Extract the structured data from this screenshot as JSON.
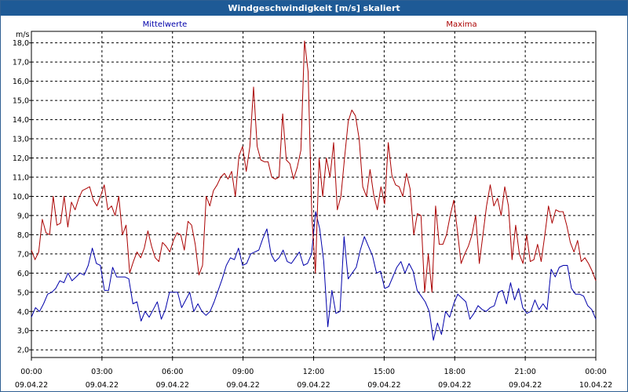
{
  "window": {
    "title": "Windgeschwindigkeit [m/s] skaliert"
  },
  "colors": {
    "title_bg": "#1e5a96",
    "series_mean": "#0000aa",
    "series_max": "#aa0000",
    "grid": "#000000"
  },
  "chart_data": {
    "type": "line",
    "title": "Windgeschwindigkeit [m/s] skaliert",
    "ylabel": "m/s",
    "xlabel": "",
    "ylim": [
      1.6,
      18.6
    ],
    "xlim": [
      0,
      24
    ],
    "grid": true,
    "legend_placement": "top",
    "y_ticks": [
      "2,0",
      "3,0",
      "4,0",
      "5,0",
      "6,0",
      "7,0",
      "8,0",
      "9,0",
      "10,0",
      "11,0",
      "12,0",
      "13,0",
      "14,0",
      "15,0",
      "16,0",
      "17,0",
      "18,0"
    ],
    "x_ticks": [
      {
        "time": "00:00",
        "date": "09.04.22"
      },
      {
        "time": "03:00",
        "date": "09.04.22"
      },
      {
        "time": "06:00",
        "date": "09.04.22"
      },
      {
        "time": "09:00",
        "date": "09.04.22"
      },
      {
        "time": "12:00",
        "date": "09.04.22"
      },
      {
        "time": "15:00",
        "date": "09.04.22"
      },
      {
        "time": "18:00",
        "date": "09.04.22"
      },
      {
        "time": "21:00",
        "date": "09.04.22"
      },
      {
        "time": "00:00",
        "date": "10.04.22"
      }
    ],
    "series": [
      {
        "name": "Mittelwerte",
        "color": "#0000aa",
        "y": [
          3.7,
          4.2,
          4.0,
          4.4,
          4.9,
          5.0,
          5.2,
          5.6,
          5.5,
          6.0,
          5.6,
          5.8,
          6.0,
          5.9,
          6.4,
          7.3,
          6.5,
          6.4,
          5.1,
          5.1,
          6.3,
          5.8,
          5.8,
          5.8,
          5.7,
          4.4,
          4.5,
          3.5,
          4.0,
          3.7,
          4.1,
          4.5,
          3.6,
          4.1,
          5.0,
          5.0,
          5.0,
          4.2,
          4.6,
          5.0,
          4.0,
          4.4,
          4.0,
          3.8,
          4.0,
          4.5,
          5.1,
          5.7,
          6.4,
          6.8,
          6.7,
          7.3,
          6.4,
          6.5,
          7.0,
          7.1,
          7.2,
          7.8,
          8.3,
          7.0,
          6.6,
          6.8,
          7.2,
          6.6,
          6.5,
          6.8,
          7.1,
          6.4,
          6.5,
          7.0,
          9.2,
          8.3,
          6.6,
          3.2,
          5.1,
          3.9,
          4.0,
          7.9,
          5.7,
          6.0,
          6.3,
          7.2,
          7.9,
          7.4,
          6.9,
          6.0,
          6.1,
          5.2,
          5.3,
          5.8,
          6.3,
          6.6,
          6.0,
          6.5,
          6.1,
          5.1,
          4.8,
          4.5,
          4.0,
          2.5,
          3.4,
          2.8,
          4.0,
          3.7,
          4.4,
          4.9,
          4.7,
          4.5,
          3.6,
          3.9,
          4.3,
          4.1,
          4.0,
          4.2,
          4.3,
          5.0,
          5.1,
          4.4,
          5.5,
          4.6,
          5.2,
          4.2,
          3.9,
          4.0,
          4.6,
          4.1,
          4.4,
          4.1,
          6.2,
          5.8,
          6.3,
          6.4,
          6.4,
          5.2,
          4.9,
          4.9,
          4.8,
          4.3,
          4.1,
          3.6
        ]
      },
      {
        "name": "Maxima",
        "color": "#aa0000",
        "y": [
          7.2,
          6.7,
          7.1,
          8.8,
          8.1,
          8.0,
          10.0,
          8.5,
          8.6,
          10.0,
          8.4,
          9.7,
          9.3,
          9.9,
          10.3,
          10.4,
          10.5,
          9.8,
          9.5,
          10.0,
          10.6,
          9.3,
          9.5,
          9.0,
          10.0,
          8.0,
          8.5,
          6.0,
          6.6,
          7.1,
          6.8,
          7.3,
          8.2,
          7.4,
          6.8,
          6.6,
          7.6,
          7.4,
          7.1,
          7.7,
          8.1,
          8.0,
          7.2,
          8.7,
          8.5,
          7.5,
          5.9,
          6.4,
          10.0,
          9.5,
          10.3,
          10.6,
          11.0,
          11.2,
          10.9,
          11.3,
          10.0,
          12.1,
          12.6,
          11.3,
          12.6,
          15.7,
          12.6,
          11.9,
          11.8,
          11.8,
          11.0,
          10.9,
          11.0,
          14.3,
          11.9,
          11.7,
          10.9,
          11.5,
          12.4,
          18.1,
          16.5,
          9.0,
          6.0,
          12.0,
          10.0,
          12.0,
          11.0,
          12.8,
          9.3,
          10.0,
          12.0,
          13.9,
          14.5,
          14.2,
          13.0,
          10.5,
          10.0,
          11.4,
          10.1,
          9.3,
          10.5,
          9.6,
          12.8,
          11.1,
          10.6,
          10.5,
          10.0,
          11.2,
          10.4,
          8.0,
          9.1,
          9.0,
          5.0,
          7.0,
          5.0,
          9.5,
          7.5,
          7.5,
          8.0,
          9.0,
          9.8,
          8.2,
          6.5,
          7.0,
          7.4,
          8.0,
          9.0,
          6.5,
          8.0,
          9.5,
          10.6,
          9.5,
          9.9,
          9.0,
          10.5,
          9.5,
          6.7,
          8.5,
          7.0,
          6.5,
          8.0,
          6.6,
          6.7,
          7.5,
          6.6,
          8.0,
          9.5,
          8.6,
          9.3,
          9.2,
          9.2,
          8.5,
          7.6,
          7.1,
          7.7,
          6.6,
          6.8,
          6.5,
          6.1,
          5.6
        ]
      }
    ]
  }
}
